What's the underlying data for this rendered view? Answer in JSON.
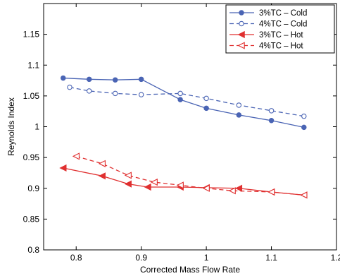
{
  "chart_data": {
    "type": "line",
    "xlabel": "Corrected Mass Flow Rate",
    "ylabel": "Reynolds Index",
    "xlim": [
      0.75,
      1.2
    ],
    "ylim": [
      0.8,
      1.2
    ],
    "xticks": [
      0.8,
      0.9,
      1,
      1.1,
      1.2
    ],
    "xtick_labels": [
      "0.8",
      "0.9",
      "1",
      "1.1",
      "1.2"
    ],
    "yticks": [
      0.8,
      0.85,
      0.9,
      0.95,
      1,
      1.05,
      1.1,
      1.15
    ],
    "ytick_labels": [
      "0.8",
      "0.85",
      "0.9",
      "0.95",
      "1",
      "1.05",
      "1.1",
      "1.15"
    ],
    "grid": false,
    "legend_position": "top-right",
    "series": [
      {
        "name": "3%TC – Cold",
        "color": "#4a64b4",
        "line": "solid",
        "marker": "filled-circle",
        "x": [
          0.78,
          0.82,
          0.86,
          0.9,
          0.96,
          1.0,
          1.05,
          1.1,
          1.15
        ],
        "y": [
          1.079,
          1.077,
          1.076,
          1.077,
          1.044,
          1.03,
          1.019,
          1.01,
          0.999
        ]
      },
      {
        "name": "4%TC – Cold",
        "color": "#4a64b4",
        "line": "dashed",
        "marker": "open-circle",
        "x": [
          0.79,
          0.82,
          0.86,
          0.9,
          0.96,
          1.0,
          1.05,
          1.1,
          1.15
        ],
        "y": [
          1.064,
          1.058,
          1.054,
          1.052,
          1.054,
          1.046,
          1.035,
          1.026,
          1.017
        ]
      },
      {
        "name": "3%TC – Hot",
        "color": "#e03030",
        "line": "solid",
        "marker": "filled-triangle-left",
        "x": [
          0.78,
          0.84,
          0.88,
          0.91,
          0.96,
          1.0,
          1.05,
          1.1,
          1.15
        ],
        "y": [
          0.933,
          0.92,
          0.907,
          0.902,
          0.902,
          0.901,
          0.9,
          0.894,
          0.889
        ]
      },
      {
        "name": "4%TC – Hot",
        "color": "#e03030",
        "line": "dashed",
        "marker": "open-triangle-left",
        "x": [
          0.8,
          0.84,
          0.88,
          0.92,
          0.96,
          1.0,
          1.04,
          1.1,
          1.15
        ],
        "y": [
          0.952,
          0.94,
          0.921,
          0.91,
          0.905,
          0.9,
          0.896,
          0.894,
          0.889
        ]
      }
    ]
  }
}
